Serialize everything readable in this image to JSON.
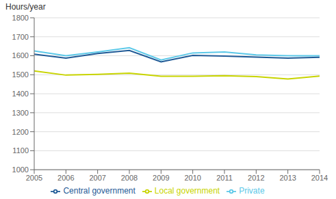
{
  "chart_data": {
    "type": "line",
    "ylabel": "Hours/year",
    "x": [
      2005,
      2006,
      2007,
      2008,
      2009,
      2010,
      2011,
      2012,
      2013,
      2014
    ],
    "series": [
      {
        "name": "Private",
        "color": "#5bc8e8",
        "values": [
          1625,
          1600,
          1620,
          1642,
          1578,
          1615,
          1620,
          1605,
          1600,
          1600
        ]
      },
      {
        "name": "Central government",
        "color": "#1f5a96",
        "values": [
          1608,
          1588,
          1612,
          1628,
          1568,
          1602,
          1598,
          1593,
          1588,
          1592
        ]
      },
      {
        "name": "Local government",
        "color": "#c8d400",
        "values": [
          1520,
          1498,
          1502,
          1508,
          1492,
          1492,
          1495,
          1490,
          1478,
          1493
        ]
      }
    ],
    "xlim": [
      2005,
      2014
    ],
    "xticks": [
      2005,
      2006,
      2007,
      2008,
      2009,
      2010,
      2011,
      2012,
      2013,
      2014
    ],
    "ylim": [
      1000,
      1800
    ],
    "yticks": [
      1000,
      1100,
      1200,
      1300,
      1400,
      1500,
      1600,
      1700,
      1800
    ],
    "grid": true,
    "legend": "bottom"
  }
}
